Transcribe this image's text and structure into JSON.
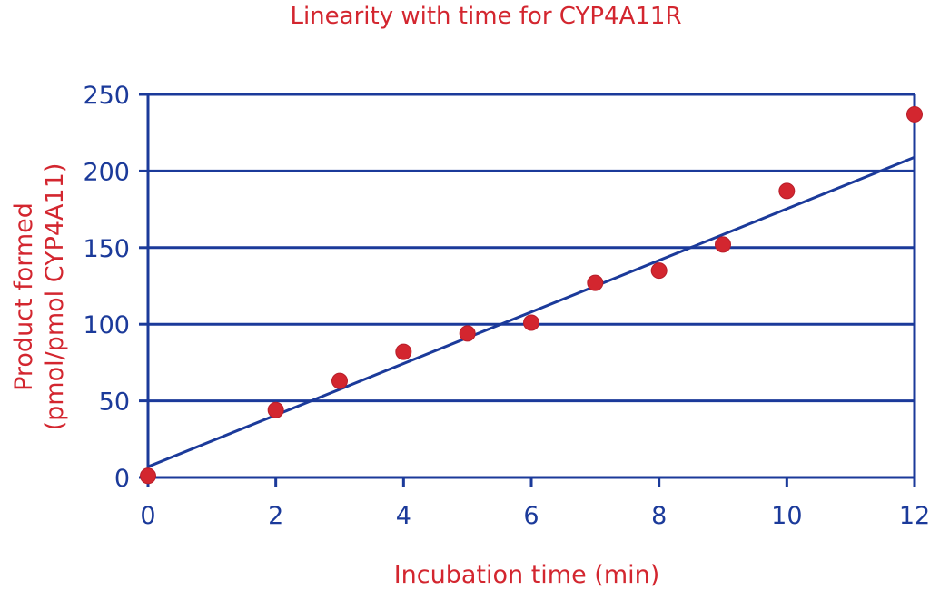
{
  "colors": {
    "title": "#d3262f",
    "axis_labels": "#d3262f",
    "ticks": "#1b3a9a",
    "grid": "#1b3a9a",
    "points": "#d3262f",
    "trendline": "#1b3a9a"
  },
  "chart_data": {
    "type": "scatter",
    "title": "Linearity with time for CYP4A11R",
    "xlabel": "Incubation time (min)",
    "ylabel_line1": "Product formed",
    "ylabel_line2": "(pmol/pmol CYP4A11)",
    "xlim": [
      0,
      12
    ],
    "ylim": [
      0,
      250
    ],
    "x_ticks": [
      0,
      2,
      4,
      6,
      8,
      10,
      12
    ],
    "y_ticks": [
      0,
      50,
      100,
      150,
      200,
      250
    ],
    "grid": "horizontal",
    "legend": "none",
    "series": [
      {
        "x": [
          0,
          2,
          3,
          4,
          5,
          6,
          7,
          8,
          9,
          10,
          12
        ],
        "y": [
          1,
          44,
          63,
          82,
          94,
          101,
          127,
          135,
          152,
          187,
          237
        ]
      }
    ],
    "trendline": {
      "type": "linear",
      "x": [
        0,
        12
      ],
      "y": [
        7,
        209
      ]
    }
  }
}
